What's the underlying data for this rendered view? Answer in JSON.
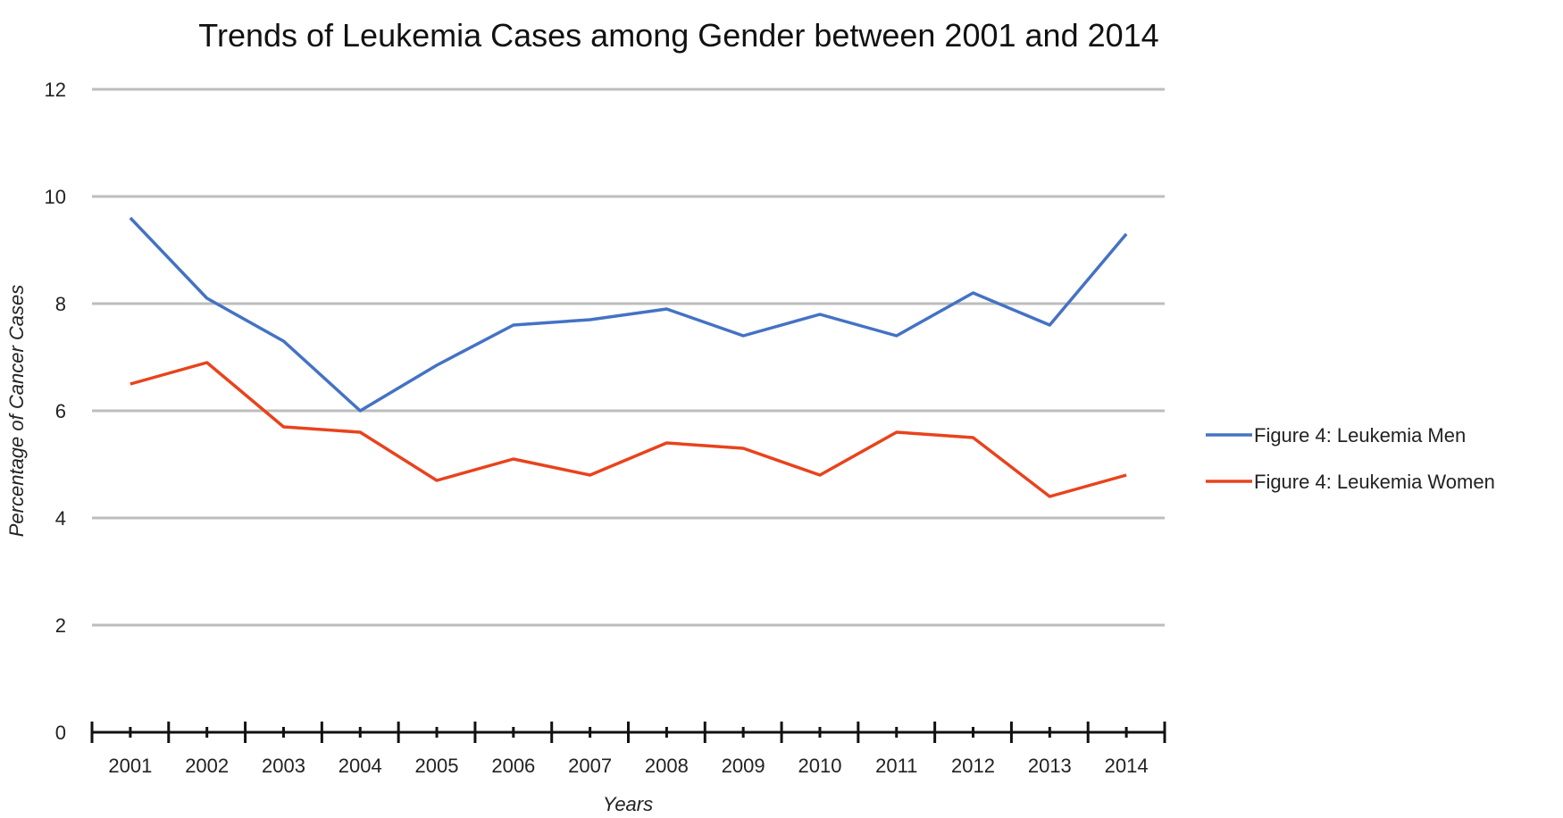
{
  "chart_data": {
    "type": "line",
    "title": "Trends of Leukemia Cases among Gender between 2001 and 2014",
    "xlabel": "Years",
    "ylabel": "Percentage of Cancer Cases",
    "categories": [
      "2001",
      "2002",
      "2003",
      "2004",
      "2005",
      "2006",
      "2007",
      "2008",
      "2009",
      "2010",
      "2011",
      "2012",
      "2013",
      "2014"
    ],
    "yticks": [
      "0",
      "2",
      "4",
      "6",
      "8",
      "10",
      "12"
    ],
    "ylim": [
      0,
      12
    ],
    "grid": true,
    "legend_position": "right",
    "series": [
      {
        "name": "Figure 4: Leukemia Men",
        "color": "#4472C4",
        "values": [
          9.6,
          8.1,
          7.3,
          6.0,
          6.85,
          7.6,
          7.7,
          7.9,
          7.4,
          7.8,
          7.4,
          8.2,
          7.6,
          9.3
        ]
      },
      {
        "name": "Figure 4: Leukemia Women",
        "color": "#E8431C",
        "values": [
          6.5,
          6.9,
          5.7,
          5.6,
          4.7,
          5.1,
          4.8,
          5.4,
          5.3,
          4.8,
          5.6,
          5.5,
          4.4,
          4.8
        ]
      }
    ]
  }
}
